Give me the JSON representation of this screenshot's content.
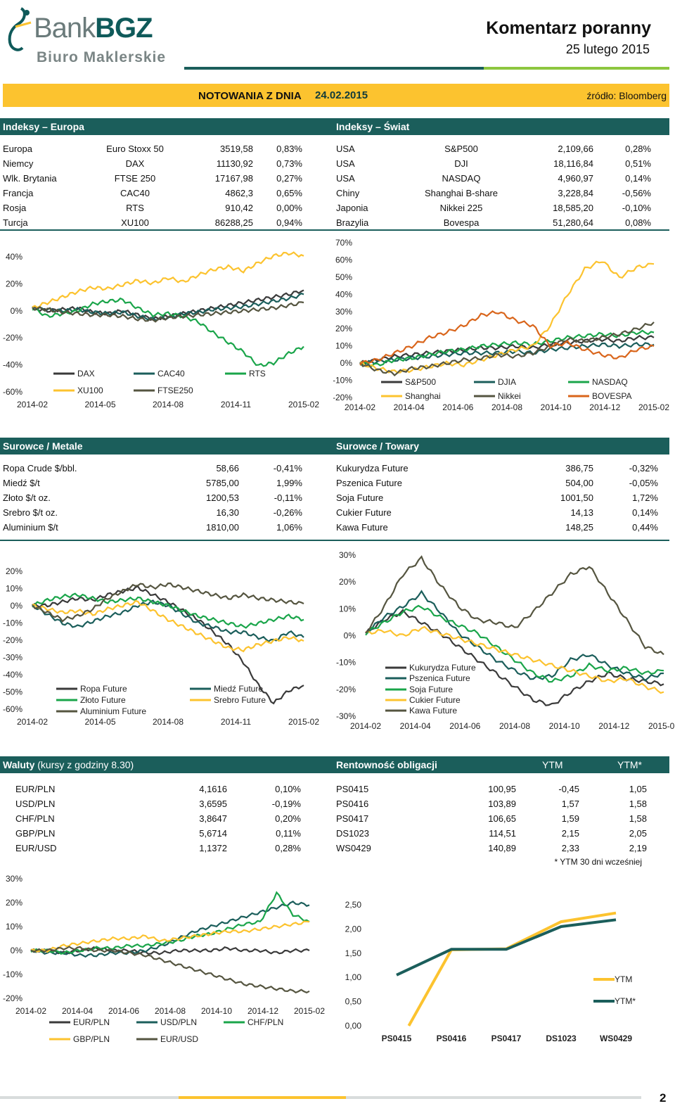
{
  "header": {
    "bank": "Bank",
    "bgz": "BGZ",
    "sub": "Biuro Maklerskie",
    "title": "Komentarz poranny",
    "date": "25 lutego 2015"
  },
  "notowania": {
    "label": "NOTOWANIA Z DNIA",
    "date": "24.02.2015",
    "source": "źródło: Bloomberg"
  },
  "europa": {
    "title": "Indeksy – Europa",
    "rows": [
      [
        "Europa",
        "Euro Stoxx 50",
        "3519,58",
        "0,83%"
      ],
      [
        "Niemcy",
        "DAX",
        "11130,92",
        "0,73%"
      ],
      [
        "Wlk. Brytania",
        "FTSE 250",
        "17167,98",
        "0,27%"
      ],
      [
        "Francja",
        "CAC40",
        "4862,3",
        "0,65%"
      ],
      [
        "Rosja",
        "RTS",
        "910,42",
        "0,00%"
      ],
      [
        "Turcja",
        "XU100",
        "86288,25",
        "0,94%"
      ]
    ]
  },
  "swiat": {
    "title": "Indeksy – Świat",
    "rows": [
      [
        "USA",
        "S&P500",
        "2,109,66",
        "0,28%"
      ],
      [
        "USA",
        "DJI",
        "18,116,84",
        "0,51%"
      ],
      [
        "USA",
        "NASDAQ",
        "4,960,97",
        "0,14%"
      ],
      [
        "Chiny",
        "Shanghai B-share",
        "3,228,84",
        "-0,56%"
      ],
      [
        "Japonia",
        "Nikkei 225",
        "18,585,20",
        "-0,10%"
      ],
      [
        "Brazylia",
        "Bovespa",
        "51,280,64",
        "0,08%"
      ]
    ]
  },
  "metale": {
    "title": "Surowce / Metale",
    "rows": [
      [
        "Ropa Crude $/bbl.",
        "58,66",
        "-0,41%"
      ],
      [
        "Miedź $/t",
        "5785,00",
        "1,99%"
      ],
      [
        "Złoto $/t oz.",
        "1200,53",
        "-0,11%"
      ],
      [
        "Srebro $/t oz.",
        "16,30",
        "-0,26%"
      ],
      [
        "Aluminium $/t",
        "1810,00",
        "1,06%"
      ]
    ]
  },
  "towary": {
    "title": "Surowce / Towary",
    "rows": [
      [
        "Kukurydza Future",
        "386,75",
        "-0,32%"
      ],
      [
        "Pszenica Future",
        "504,00",
        "-0,05%"
      ],
      [
        "Soja Future",
        "1001,50",
        "1,72%"
      ],
      [
        "Cukier Future",
        "14,13",
        "0,14%"
      ],
      [
        "Kawa Future",
        "148,25",
        "0,44%"
      ]
    ]
  },
  "waluty": {
    "title": "Waluty",
    "title_note": "(kursy z godziny 8.30)",
    "rows": [
      [
        "EUR/PLN",
        "4,1616",
        "0,10%"
      ],
      [
        "USD/PLN",
        "3,6595",
        "-0,19%"
      ],
      [
        "CHF/PLN",
        "3,8647",
        "0,20%"
      ],
      [
        "GBP/PLN",
        "5,6714",
        "0,11%"
      ],
      [
        "EUR/USD",
        "1,1372",
        "0,28%"
      ]
    ]
  },
  "obligacje": {
    "title": "Rentowność obligacji",
    "col_ytm": "YTM",
    "col_ytm_star": "YTM*",
    "rows": [
      [
        "PS0415",
        "100,95",
        "-0,45",
        "1,05"
      ],
      [
        "PS0416",
        "103,89",
        "1,57",
        "1,58"
      ],
      [
        "PS0417",
        "106,65",
        "1,59",
        "1,58"
      ],
      [
        "DS1023",
        "114,51",
        "2,15",
        "2,05"
      ],
      [
        "WS0429",
        "140,89",
        "2,33",
        "2,19"
      ]
    ],
    "note": "* YTM 30 dni wcześniej"
  },
  "page_number": "2",
  "colors": {
    "teal": "#1b5e5b",
    "yellow": "#fcc32f",
    "green": "#1aa54a",
    "dark": "#3a3a3a",
    "olive": "#555540",
    "orange": "#d9651b",
    "lime": "#8dc63f"
  },
  "chart_data": [
    {
      "type": "line",
      "id": "europa",
      "x_ticks": [
        "2014-02",
        "2014-05",
        "2014-08",
        "2014-11",
        "2015-02"
      ],
      "y_ticks": [
        "40%",
        "20%",
        "0%",
        "-20%",
        "-40%",
        "-60%"
      ],
      "ylim": [
        -60,
        45
      ],
      "series": [
        {
          "name": "DAX",
          "color": "#3a3a3a",
          "values": [
            0,
            -2,
            -1,
            0,
            -3,
            -4,
            -2,
            -5,
            -8,
            -6,
            -4,
            -2,
            0,
            2,
            4,
            6,
            8,
            10,
            13
          ]
        },
        {
          "name": "CAC40",
          "color": "#1b5e5b",
          "values": [
            0,
            -1,
            -2,
            -1,
            -3,
            -4,
            -3,
            -6,
            -8,
            -7,
            -4,
            -3,
            -1,
            0,
            1,
            3,
            5,
            7,
            10
          ]
        },
        {
          "name": "RTS",
          "color": "#1aa54a",
          "values": [
            0,
            -6,
            -4,
            -2,
            3,
            5,
            6,
            0,
            -5,
            -4,
            -6,
            -10,
            -18,
            -25,
            -32,
            -42,
            -40,
            -33,
            -28
          ]
        },
        {
          "name": "XU100",
          "color": "#fcc32f",
          "values": [
            0,
            4,
            8,
            12,
            15,
            14,
            17,
            20,
            18,
            22,
            19,
            24,
            28,
            30,
            27,
            33,
            38,
            40,
            38
          ]
        },
        {
          "name": "FTSE250",
          "color": "#555540",
          "values": [
            0,
            -1,
            -3,
            -4,
            -5,
            -5,
            -6,
            -8,
            -9,
            -7,
            -6,
            -5,
            -4,
            -3,
            -2,
            -1,
            0,
            2,
            4
          ]
        }
      ]
    },
    {
      "type": "line",
      "id": "swiat",
      "x_ticks": [
        "2014-02",
        "2014-04",
        "2014-06",
        "2014-08",
        "2014-10",
        "2014-12",
        "2015-02"
      ],
      "y_ticks": [
        "70%",
        "60%",
        "50%",
        "40%",
        "30%",
        "20%",
        "10%",
        "0%",
        "-10%",
        "-20%"
      ],
      "ylim": [
        -20,
        70
      ],
      "series": [
        {
          "name": "S&P500",
          "color": "#3a3a3a",
          "values": [
            0,
            2,
            4,
            5,
            6,
            7,
            8,
            9,
            9,
            10,
            9,
            11,
            12,
            13,
            14,
            13,
            15,
            15
          ]
        },
        {
          "name": "DJIA",
          "color": "#1b5e5b",
          "values": [
            0,
            1,
            2,
            3,
            4,
            5,
            6,
            6,
            6,
            7,
            6,
            8,
            9,
            10,
            11,
            10,
            11,
            11
          ]
        },
        {
          "name": "NASDAQ",
          "color": "#1aa54a",
          "values": [
            0,
            -1,
            2,
            3,
            5,
            7,
            8,
            10,
            11,
            12,
            11,
            13,
            15,
            16,
            17,
            16,
            18,
            18
          ]
        },
        {
          "name": "Shanghai",
          "color": "#fcc32f",
          "values": [
            0,
            -3,
            -5,
            -4,
            -2,
            0,
            -1,
            2,
            5,
            8,
            10,
            22,
            40,
            55,
            60,
            50,
            56,
            58
          ]
        },
        {
          "name": "Nikkei",
          "color": "#555540",
          "values": [
            0,
            -4,
            -6,
            -3,
            -2,
            0,
            2,
            3,
            5,
            4,
            6,
            10,
            14,
            13,
            15,
            17,
            20,
            24
          ]
        },
        {
          "name": "BOVESPA",
          "color": "#d9651b",
          "values": [
            0,
            2,
            6,
            10,
            15,
            18,
            22,
            28,
            30,
            25,
            22,
            10,
            12,
            8,
            5,
            3,
            8,
            10
          ]
        }
      ]
    },
    {
      "type": "line",
      "id": "metale",
      "x_ticks": [
        "2014-02",
        "2014-05",
        "2014-08",
        "2014-11",
        "2015-02"
      ],
      "y_ticks": [
        "20%",
        "10%",
        "0%",
        "-10%",
        "-20%",
        "-30%",
        "-40%",
        "-50%",
        "-60%"
      ],
      "ylim": [
        -60,
        20
      ],
      "series": [
        {
          "name": "Ropa Future",
          "color": "#3a3a3a",
          "values": [
            0,
            0,
            2,
            4,
            3,
            6,
            8,
            10,
            6,
            2,
            -3,
            -8,
            -15,
            -22,
            -32,
            -45,
            -55,
            -48,
            -45
          ]
        },
        {
          "name": "Miedź Future",
          "color": "#1b5e5b",
          "values": [
            0,
            -5,
            -10,
            -12,
            -9,
            -6,
            -4,
            0,
            2,
            0,
            -5,
            -10,
            -12,
            -15,
            -15,
            -18,
            -20,
            -15,
            -18
          ]
        },
        {
          "name": "Złoto Future",
          "color": "#1aa54a",
          "values": [
            0,
            3,
            5,
            6,
            4,
            2,
            3,
            4,
            2,
            0,
            -3,
            -6,
            -8,
            -10,
            -12,
            -10,
            -8,
            -6,
            -8
          ]
        },
        {
          "name": "Srebro Future",
          "color": "#fcc32f",
          "values": [
            0,
            -2,
            -4,
            -3,
            -5,
            -2,
            0,
            2,
            -3,
            -8,
            -12,
            -16,
            -20,
            -24,
            -25,
            -22,
            -20,
            -18,
            -20
          ]
        },
        {
          "name": "Aluminium Future",
          "color": "#555540",
          "values": [
            0,
            -4,
            -8,
            -6,
            -2,
            4,
            8,
            12,
            10,
            12,
            10,
            8,
            6,
            4,
            6,
            4,
            3,
            2,
            1
          ]
        }
      ]
    },
    {
      "type": "line",
      "id": "towary",
      "x_ticks": [
        "2014-02",
        "2014-04",
        "2014-06",
        "2014-08",
        "2014-10",
        "2014-12",
        "2015-02"
      ],
      "y_ticks": [
        "30%",
        "20%",
        "10%",
        "0%",
        "-10%",
        "-20%",
        "-30%"
      ],
      "ylim": [
        -30,
        30
      ],
      "series": [
        {
          "name": "Kukurydza Future",
          "color": "#3a3a3a",
          "values": [
            0,
            5,
            8,
            4,
            0,
            -5,
            -10,
            -15,
            -20,
            -25,
            -27,
            -22,
            -18,
            -15,
            -17,
            -18,
            -19
          ]
        },
        {
          "name": "Pszenica Future",
          "color": "#1b5e5b",
          "values": [
            0,
            6,
            10,
            15,
            8,
            0,
            -5,
            -10,
            -14,
            -17,
            -16,
            -10,
            -8,
            -12,
            -15,
            -17,
            -15
          ]
        },
        {
          "name": "Soja Future",
          "color": "#1aa54a",
          "values": [
            0,
            4,
            8,
            10,
            6,
            3,
            0,
            -5,
            -10,
            -15,
            -18,
            -16,
            -12,
            -14,
            -13,
            -15,
            -14
          ]
        },
        {
          "name": "Cukier Future",
          "color": "#fcc32f",
          "values": [
            0,
            1,
            -1,
            2,
            0,
            -2,
            -4,
            -6,
            -8,
            -10,
            -12,
            -14,
            -16,
            -18,
            -17,
            -20,
            -22
          ]
        },
        {
          "name": "Kawa Future",
          "color": "#555540",
          "values": [
            0,
            10,
            22,
            28,
            18,
            10,
            5,
            4,
            2,
            8,
            15,
            22,
            25,
            15,
            5,
            -5,
            -8
          ]
        }
      ]
    },
    {
      "type": "line",
      "id": "waluty",
      "x_ticks": [
        "2014-02",
        "2014-04",
        "2014-06",
        "2014-08",
        "2014-10",
        "2014-12",
        "2015-02"
      ],
      "y_ticks": [
        "30%",
        "20%",
        "10%",
        "0%",
        "-10%",
        "-20%"
      ],
      "ylim": [
        -20,
        30
      ],
      "series": [
        {
          "name": "EUR/PLN",
          "color": "#3a3a3a",
          "values": [
            0,
            0,
            -1,
            0,
            1,
            0,
            0,
            -1,
            -1,
            0,
            0,
            0,
            1,
            0,
            0,
            -1,
            0,
            0
          ]
        },
        {
          "name": "USD/PLN",
          "color": "#1b5e5b",
          "values": [
            0,
            -1,
            -1,
            -2,
            -2,
            -1,
            -1,
            0,
            2,
            5,
            8,
            10,
            12,
            14,
            16,
            18,
            20,
            19
          ]
        },
        {
          "name": "CHF/PLN",
          "color": "#1aa54a",
          "values": [
            0,
            0,
            -1,
            0,
            1,
            1,
            2,
            2,
            3,
            4,
            6,
            7,
            9,
            11,
            12,
            24,
            15,
            12
          ]
        },
        {
          "name": "GBP/PLN",
          "color": "#fcc32f",
          "values": [
            0,
            0,
            2,
            3,
            4,
            5,
            5,
            6,
            4,
            5,
            6,
            7,
            8,
            8,
            9,
            10,
            11,
            12
          ]
        },
        {
          "name": "EUR/USD",
          "color": "#555540",
          "values": [
            0,
            0,
            1,
            1,
            0,
            0,
            -1,
            -2,
            -4,
            -6,
            -8,
            -10,
            -12,
            -14,
            -15,
            -16,
            -17,
            -17
          ]
        }
      ]
    },
    {
      "type": "line",
      "id": "obligacje",
      "categories": [
        "PS0415",
        "PS0416",
        "PS0417",
        "DS1023",
        "WS0429"
      ],
      "y_ticks": [
        "2,50",
        "2,00",
        "1,50",
        "1,00",
        "0,50",
        "0,00"
      ],
      "ylim": [
        0,
        2.5
      ],
      "series": [
        {
          "name": "YTM",
          "color": "#fcc32f",
          "values": [
            -0.45,
            1.57,
            1.59,
            2.15,
            2.33
          ]
        },
        {
          "name": "YTM*",
          "color": "#1b5e5b",
          "values": [
            1.05,
            1.58,
            1.58,
            2.05,
            2.19
          ]
        }
      ]
    }
  ]
}
